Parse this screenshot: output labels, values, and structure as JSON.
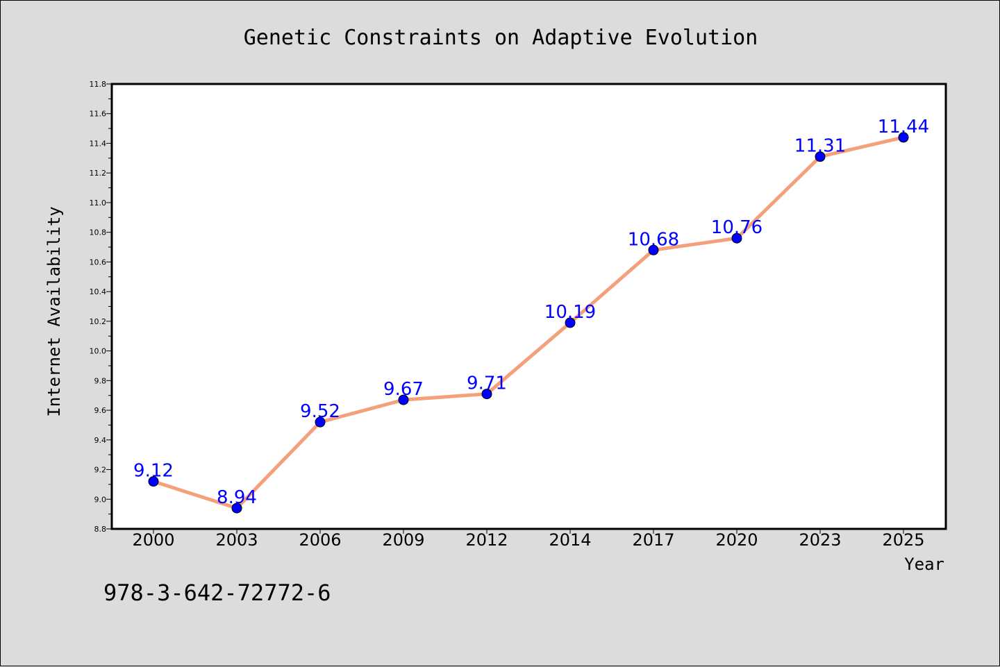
{
  "chart_data": {
    "type": "line",
    "title": "Genetic Constraints on Adaptive Evolution",
    "xlabel": "Year",
    "ylabel": "Internet Availability",
    "categories": [
      "2000",
      "2003",
      "2006",
      "2009",
      "2012",
      "2014",
      "2017",
      "2020",
      "2023",
      "2025"
    ],
    "values": [
      9.12,
      8.94,
      9.52,
      9.67,
      9.71,
      10.19,
      10.68,
      10.76,
      11.31,
      11.44
    ],
    "data_labels": [
      "9.12",
      "8.94",
      "9.52",
      "9.67",
      "9.71",
      "10.19",
      "10.68",
      "10.76",
      "11.31",
      "11.44"
    ],
    "ylim": [
      8.8,
      11.8
    ],
    "yticks": [
      "8.8",
      "9.0",
      "9.2",
      "9.4",
      "9.6",
      "9.8",
      "10.0",
      "10.2",
      "10.4",
      "10.6",
      "10.8",
      "11.0",
      "11.2",
      "11.4",
      "11.6",
      "11.8"
    ],
    "grid": false,
    "line_color": "#f4a07a",
    "marker_color": "#0000ff",
    "label_color": "#0000ff"
  },
  "footer": {
    "code": "978-3-642-72772-6"
  }
}
